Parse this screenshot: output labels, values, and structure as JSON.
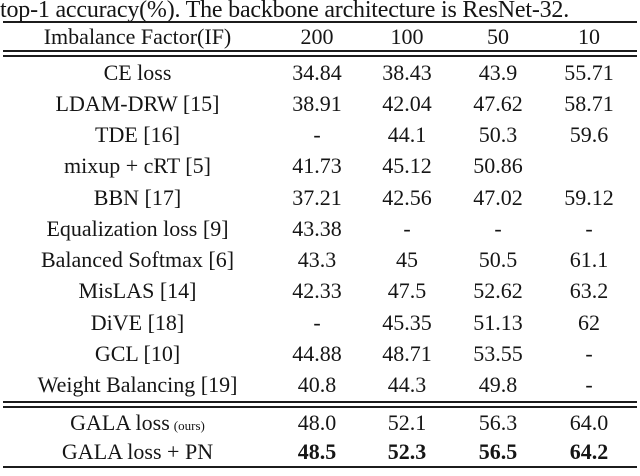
{
  "caption": "top-1 accuracy(%). The backbone architecture is ResNet-32.",
  "colors": {
    "text": "#151515",
    "rule": "#1c1c1c",
    "background": "#ffffff"
  },
  "table": {
    "header": {
      "label": "Imbalance Factor(IF)",
      "columns": [
        "200",
        "100",
        "50",
        "10"
      ]
    },
    "rows": [
      {
        "method": "CE loss",
        "values": [
          "34.84",
          "38.43",
          "43.9",
          "55.71"
        ]
      },
      {
        "method": "LDAM-DRW [15]",
        "values": [
          "38.91",
          "42.04",
          "47.62",
          "58.71"
        ]
      },
      {
        "method": "TDE [16]",
        "values": [
          "-",
          "44.1",
          "50.3",
          "59.6"
        ]
      },
      {
        "method": "mixup + cRT [5]",
        "values": [
          "41.73",
          "45.12",
          "50.86",
          ""
        ]
      },
      {
        "method": "BBN [17]",
        "values": [
          "37.21",
          "42.56",
          "47.02",
          "59.12"
        ]
      },
      {
        "method": "Equalization loss [9]",
        "values": [
          "43.38",
          "-",
          "-",
          "-"
        ]
      },
      {
        "method": "Balanced Softmax [6]",
        "values": [
          "43.3",
          "45",
          "50.5",
          "61.1"
        ]
      },
      {
        "method": "MisLAS [14]",
        "values": [
          "42.33",
          "47.5",
          "52.62",
          "63.2"
        ]
      },
      {
        "method": "DiVE [18]",
        "values": [
          "-",
          "45.35",
          "51.13",
          "62"
        ]
      },
      {
        "method": "GCL [10]",
        "values": [
          "44.88",
          "48.71",
          "53.55",
          "-"
        ]
      },
      {
        "method": "Weight Balancing [19]",
        "values": [
          "40.8",
          "44.3",
          "49.8",
          "-"
        ]
      }
    ],
    "ours_rows": [
      {
        "method": "GALA loss",
        "method_suffix": "(ours)",
        "bold": false,
        "values": [
          "48.0",
          "52.1",
          "56.3",
          "64.0"
        ]
      },
      {
        "method": "GALA loss + PN",
        "method_suffix": "",
        "bold": true,
        "values": [
          "48.5",
          "52.3",
          "56.5",
          "64.2"
        ]
      }
    ]
  }
}
